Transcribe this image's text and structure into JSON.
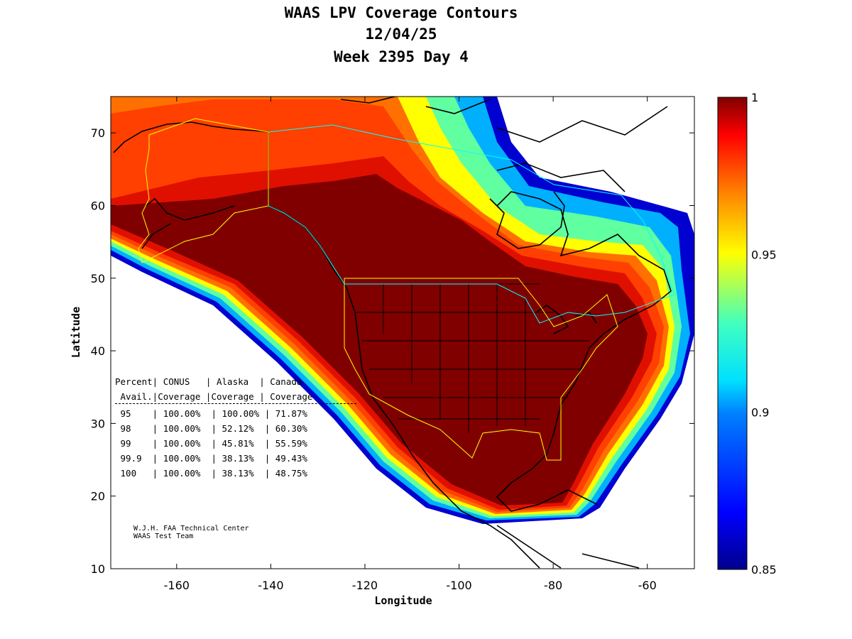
{
  "title": {
    "line1": "WAAS LPV Coverage Contours",
    "line2": "12/04/25",
    "line3": "Week 2395 Day 4"
  },
  "axes": {
    "xlabel": "Longitude",
    "ylabel": "Latitude",
    "xlim": [
      -174,
      -50
    ],
    "ylim": [
      10,
      75
    ],
    "xticks": [
      -160,
      -140,
      -120,
      -100,
      -80,
      -60
    ],
    "yticks": [
      10,
      20,
      30,
      40,
      50,
      60,
      70
    ],
    "xtick_labels": [
      "-160",
      "-140",
      "-120",
      "-100",
      "-80",
      "-60"
    ],
    "ytick_labels": [
      "10",
      "20",
      "30",
      "40",
      "50",
      "60",
      "70"
    ]
  },
  "colorbar": {
    "min": 0.85,
    "max": 1,
    "tick_labels": [
      "1",
      "0.95",
      "0.9",
      "0.85"
    ],
    "colormap": "jet"
  },
  "coverage_table": {
    "header1": "Percent| CONUS   | Alaska  | Canada",
    "header2": " Avail.|Coverage |Coverage | Coverage",
    "rows": [
      {
        "avail": "95",
        "conus": "100.00%",
        "alaska": "100.00%",
        "canada": "71.87%"
      },
      {
        "avail": "98",
        "conus": "100.00%",
        "alaska": "52.12%",
        "canada": "60.30%"
      },
      {
        "avail": "99",
        "conus": "100.00%",
        "alaska": "45.81%",
        "canada": "55.59%"
      },
      {
        "avail": "99.9",
        "conus": "100.00%",
        "alaska": "38.13%",
        "canada": "49.43%"
      },
      {
        "avail": "100",
        "conus": "100.00%",
        "alaska": "38.13%",
        "canada": "48.75%"
      }
    ]
  },
  "credit": {
    "line1": "W.J.H. FAA Technical Center",
    "line2": "WAAS Test Team"
  },
  "colors": {
    "max_coverage": "#800000",
    "high_coverage": "#ff4000",
    "mid_coverage": "#ffff00",
    "low_coverage": "#00c0ff",
    "min_coverage": "#00008c",
    "service_boundary": "#ffff00",
    "canada_boundary": "#00ffff"
  }
}
